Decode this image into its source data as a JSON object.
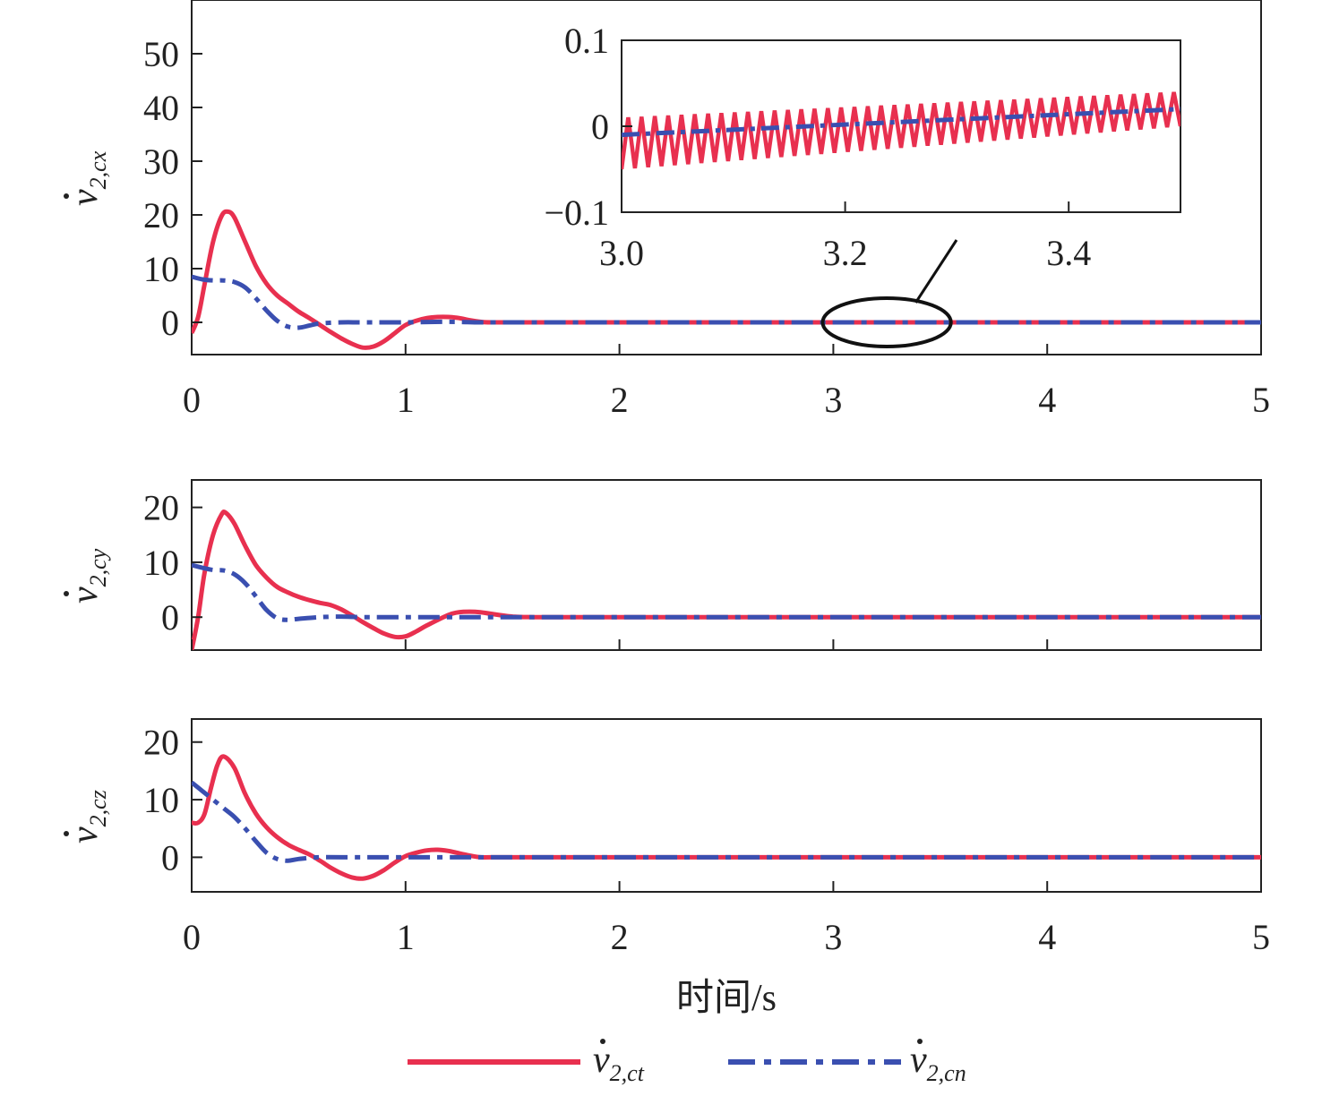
{
  "legend": {
    "series": [
      {
        "main": "v",
        "sub": "2,ct"
      },
      {
        "main": "v",
        "sub": "2,cn"
      }
    ]
  },
  "xlabel": "时间/s",
  "colors": {
    "ct": "#e8304f",
    "cn": "#3a4fb0",
    "axis": "#222222"
  },
  "chart_data": [
    {
      "type": "line",
      "ylabel": {
        "main": "v",
        "sub": "2,cx"
      },
      "xlim": [
        0,
        5
      ],
      "ylim": [
        -6,
        60
      ],
      "xticks": [
        "0",
        "1",
        "2",
        "3",
        "4",
        "5"
      ],
      "yticks": [
        "0",
        "10",
        "20",
        "30",
        "40",
        "50"
      ],
      "series": [
        {
          "x": [
            0,
            0.03,
            0.06,
            0.1,
            0.14,
            0.17,
            0.2,
            0.25,
            0.3,
            0.35,
            0.4,
            0.45,
            0.5,
            0.55,
            0.6,
            0.65,
            0.7,
            0.75,
            0.8,
            0.85,
            0.9,
            0.95,
            1.0,
            1.05,
            1.1,
            1.15,
            1.2,
            1.25,
            1.3,
            1.35,
            1.4,
            1.6,
            2.0,
            3.0,
            4.0,
            5.0
          ],
          "y": [
            -2,
            1,
            7,
            15,
            19.8,
            20.6,
            19.5,
            15,
            10.5,
            7.2,
            5,
            3.5,
            2,
            0.8,
            -0.5,
            -1.8,
            -3,
            -4,
            -4.7,
            -4.5,
            -3.5,
            -2,
            -0.5,
            0.3,
            0.8,
            1,
            1,
            0.8,
            0.4,
            0.1,
            0,
            0,
            0,
            0,
            0,
            0
          ]
        },
        {
          "x": [
            0,
            0.05,
            0.1,
            0.15,
            0.2,
            0.25,
            0.3,
            0.35,
            0.4,
            0.45,
            0.5,
            0.55,
            0.6,
            0.7,
            0.8,
            1.0,
            1.2,
            1.35,
            1.5,
            2,
            3,
            4,
            5
          ],
          "y": [
            8.5,
            8,
            7.8,
            7.8,
            7.5,
            6.5,
            4.5,
            2.2,
            0.3,
            -0.8,
            -1,
            -0.6,
            -0.2,
            0,
            0,
            0,
            0.1,
            0,
            0,
            0,
            0,
            0,
            0
          ]
        }
      ],
      "annotations": [
        {
          "type": "zoom-ellipse",
          "x": [
            2.95,
            3.55
          ]
        }
      ]
    },
    {
      "type": "line",
      "xlim": [
        3.0,
        3.5
      ],
      "ylim": [
        -0.1,
        0.1
      ],
      "xticks": [
        "3.0",
        "3.2",
        "3.4"
      ],
      "yticks": [
        "−0.1",
        "0",
        "0.1"
      ],
      "series": [
        {
          "x_start": 3.0,
          "x_end": 3.5,
          "cycles": 42,
          "center_start": -0.02,
          "center_end": 0.02,
          "amp_start": 0.03,
          "amp_end": 0.02
        },
        {
          "x": [
            3.0,
            3.5
          ],
          "y": [
            -0.01,
            0.02
          ]
        }
      ]
    },
    {
      "type": "line",
      "ylabel": {
        "main": "v",
        "sub": "2,cy"
      },
      "xlim": [
        0,
        5
      ],
      "ylim": [
        -6,
        25
      ],
      "xticks": [
        "0",
        "1",
        "2",
        "3",
        "4",
        "5"
      ],
      "yticks": [
        "0",
        "10",
        "20"
      ],
      "series": [
        {
          "x": [
            0,
            0.03,
            0.06,
            0.1,
            0.14,
            0.16,
            0.2,
            0.25,
            0.3,
            0.35,
            0.4,
            0.45,
            0.5,
            0.55,
            0.6,
            0.65,
            0.7,
            0.75,
            0.8,
            0.85,
            0.9,
            0.95,
            1.0,
            1.05,
            1.1,
            1.2,
            1.25,
            1.3,
            1.35,
            1.4,
            1.5,
            1.6,
            2,
            3,
            4,
            5
          ],
          "y": [
            -6,
            0,
            8,
            15,
            18.7,
            19,
            17,
            13,
            9.5,
            7.2,
            5.5,
            4.5,
            3.7,
            3.1,
            2.6,
            2.2,
            1.4,
            0.3,
            -0.9,
            -2,
            -3,
            -3.6,
            -3.5,
            -2.6,
            -1.5,
            0.4,
            0.9,
            1,
            0.9,
            0.6,
            0.1,
            0,
            0,
            0,
            0,
            0
          ]
        },
        {
          "x": [
            0,
            0.05,
            0.1,
            0.15,
            0.2,
            0.25,
            0.3,
            0.35,
            0.4,
            0.45,
            0.5,
            0.6,
            0.7,
            0.8,
            1.0,
            1.2,
            1.4,
            2,
            3,
            4,
            5
          ],
          "y": [
            9.5,
            9,
            8.6,
            8.5,
            7.8,
            6.2,
            3.8,
            1.3,
            -0.2,
            -0.5,
            -0.3,
            0,
            0.1,
            0,
            0,
            0,
            0,
            0,
            0,
            0,
            0
          ]
        }
      ]
    },
    {
      "type": "line",
      "ylabel": {
        "main": "v",
        "sub": "2,cz"
      },
      "xlim": [
        0,
        5
      ],
      "ylim": [
        -6,
        24
      ],
      "xticks": [
        "0",
        "1",
        "2",
        "3",
        "4",
        "5"
      ],
      "yticks": [
        "0",
        "10",
        "20"
      ],
      "series": [
        {
          "x": [
            0,
            0.03,
            0.06,
            0.09,
            0.12,
            0.15,
            0.2,
            0.25,
            0.3,
            0.35,
            0.4,
            0.45,
            0.5,
            0.55,
            0.6,
            0.65,
            0.7,
            0.75,
            0.8,
            0.85,
            0.9,
            0.95,
            1.0,
            1.05,
            1.1,
            1.15,
            1.2,
            1.25,
            1.3,
            1.35,
            1.4,
            1.6,
            2,
            3,
            4,
            5
          ],
          "y": [
            6,
            6,
            7.5,
            12,
            16,
            17.5,
            15.5,
            11,
            7.6,
            5.2,
            3.5,
            2.2,
            1.3,
            0.5,
            -0.6,
            -1.8,
            -2.8,
            -3.5,
            -3.7,
            -3.2,
            -2.2,
            -0.9,
            0.2,
            0.8,
            1.2,
            1.3,
            1.1,
            0.7,
            0.3,
            0,
            0,
            0,
            0,
            0,
            0,
            0
          ]
        },
        {
          "x": [
            0,
            0.05,
            0.1,
            0.15,
            0.2,
            0.25,
            0.3,
            0.35,
            0.4,
            0.45,
            0.5,
            0.6,
            0.8,
            1.0,
            1.2,
            1.4,
            2,
            3,
            4,
            5
          ],
          "y": [
            13,
            11.5,
            10,
            8.5,
            7,
            5,
            2.8,
            0.8,
            -0.3,
            -0.6,
            -0.3,
            0,
            0,
            0,
            0,
            0,
            0,
            0,
            0,
            0
          ]
        }
      ]
    }
  ]
}
